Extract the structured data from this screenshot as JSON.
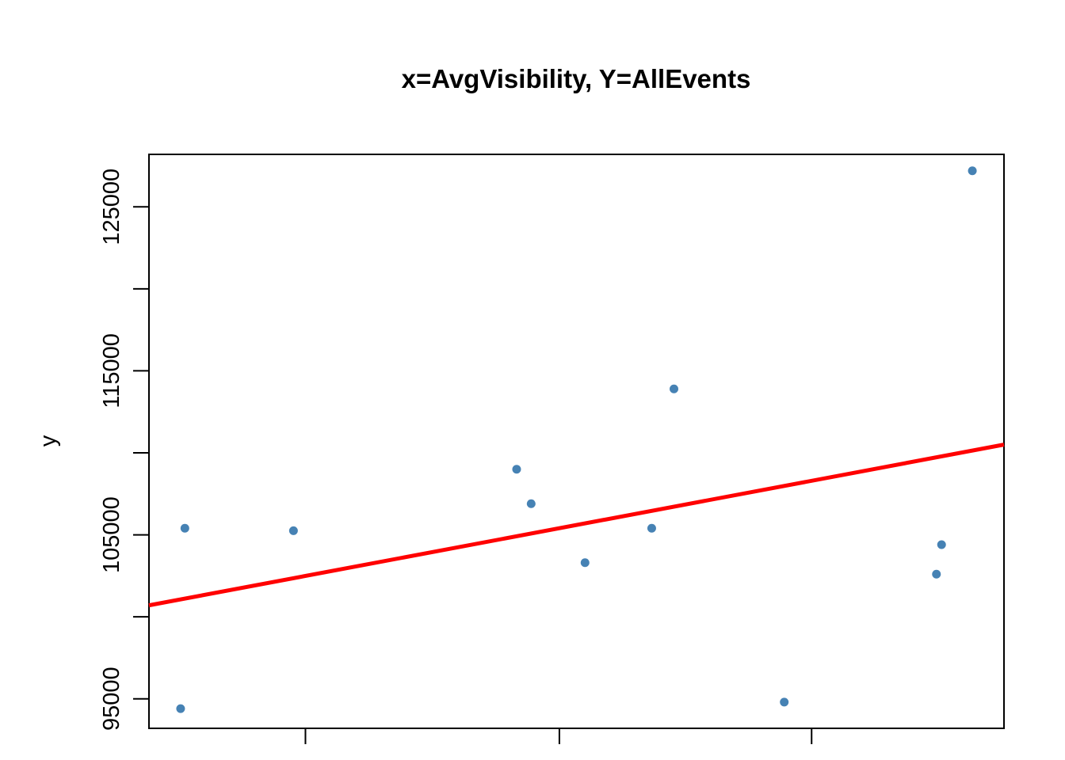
{
  "chart_data": {
    "type": "scatter",
    "title": "x=AvgVisibility, Y=AllEvents",
    "xlabel": "",
    "ylabel": "y",
    "xlim": [
      0,
      1
    ],
    "ylim": [
      93200,
      128200
    ],
    "yticks": [
      95000,
      100000,
      105000,
      110000,
      115000,
      120000,
      125000
    ],
    "ytick_labels": [
      "95000",
      "",
      "105000",
      "",
      "115000",
      "",
      "125000"
    ],
    "xticks": [
      0.183,
      0.48,
      0.775
    ],
    "xtick_labels": [
      "",
      "",
      ""
    ],
    "point_color": "#4682B4",
    "line_color": "#FF0000",
    "points": [
      {
        "x": 0.037,
        "y": 94400
      },
      {
        "x": 0.042,
        "y": 105400
      },
      {
        "x": 0.169,
        "y": 105250
      },
      {
        "x": 0.43,
        "y": 109000
      },
      {
        "x": 0.447,
        "y": 106900
      },
      {
        "x": 0.51,
        "y": 103300
      },
      {
        "x": 0.588,
        "y": 105400
      },
      {
        "x": 0.614,
        "y": 113900
      },
      {
        "x": 0.743,
        "y": 94800
      },
      {
        "x": 0.921,
        "y": 102600
      },
      {
        "x": 0.927,
        "y": 104400
      },
      {
        "x": 0.963,
        "y": 127200
      }
    ],
    "regression_line": {
      "x": [
        0,
        1
      ],
      "y": [
        100700,
        110500
      ]
    },
    "grid": false
  }
}
